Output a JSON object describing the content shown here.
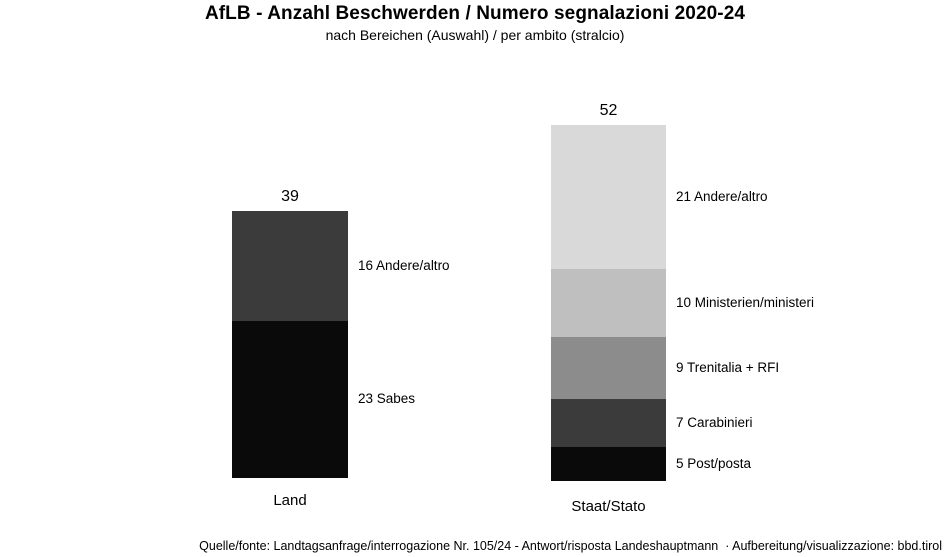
{
  "header": {
    "title": "AfLB - Anzahl Beschwerden / Numero segnalazioni 2020-24",
    "subtitle": "nach Bereichen (Auswahl) / per ambito (stralcio)"
  },
  "footer": {
    "source": "Quelle/fonte: Landtagsanfrage/interrogazione Nr. 105/24 - Antwort/risposta Landeshauptmann  · Aufbereitung/visualizzazione: bbd.tirol"
  },
  "chart_data": {
    "type": "bar",
    "orientation": "vertical",
    "stacked": true,
    "title": "AfLB - Anzahl Beschwerden / Numero segnalazioni 2020-24",
    "subtitle": "nach Bereichen (Auswahl) / per ambito (stralcio)",
    "categories": [
      "Land",
      "Staat/Stato"
    ],
    "totals": [
      39,
      52
    ],
    "ylim": [
      0,
      52
    ],
    "grid": false,
    "axes_visible": false,
    "legend": "none",
    "label_position": "right-of-segment",
    "colors": {
      "black": "#0a0a0a",
      "dark_gray": "#3b3b3b",
      "mid_gray": "#8c8c8c",
      "light_gray": "#bfbfbf",
      "lightest_gray": "#d9d9d9",
      "text": "#000000",
      "background": "#ffffff"
    },
    "bars": [
      {
        "category": "Land",
        "total": 39,
        "total_label": "39",
        "segments_bottom_to_top": [
          {
            "value": 23,
            "label": "23 Sabes",
            "color": "#0a0a0a"
          },
          {
            "value": 16,
            "label": "16 Andere/altro",
            "color": "#3b3b3b"
          }
        ]
      },
      {
        "category": "Staat/Stato",
        "total": 52,
        "total_label": "52",
        "segments_bottom_to_top": [
          {
            "value": 5,
            "label": "5 Post/posta",
            "color": "#0a0a0a"
          },
          {
            "value": 7,
            "label": "7 Carabinieri",
            "color": "#3b3b3b"
          },
          {
            "value": 9,
            "label": "9 Trenitalia + RFI",
            "color": "#8c8c8c"
          },
          {
            "value": 10,
            "label": "10 Ministerien/ministeri",
            "color": "#bfbfbf"
          },
          {
            "value": 21,
            "label": "21 Andere/altro",
            "color": "#d9d9d9"
          }
        ]
      }
    ]
  }
}
